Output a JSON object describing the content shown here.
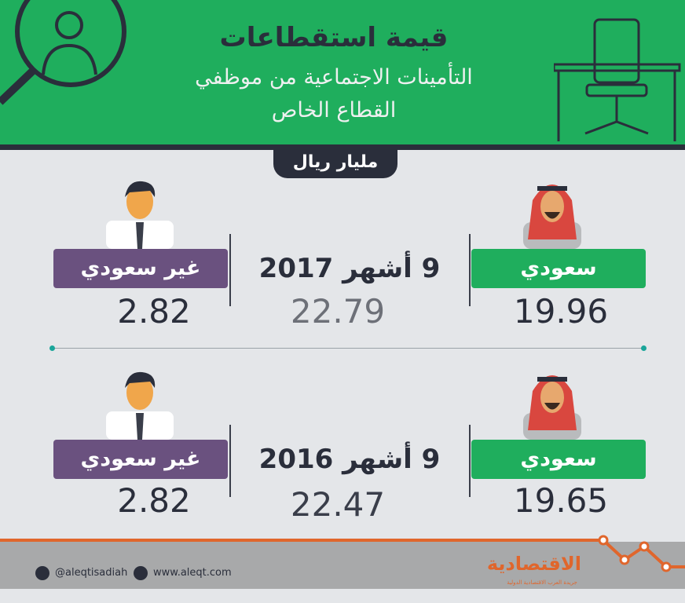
{
  "header": {
    "title_line1": "قيمة استقطاعات",
    "title_line2": "التأمينات الاجتماعية من موظفي",
    "title_line3": "القطاع الخاص"
  },
  "unit_badge": "مليار ريال",
  "rows": [
    {
      "period": "9 أشهر 2017",
      "saudi_label": "سعودي",
      "saudi_value": "19.96",
      "total_value": "22.79",
      "non_saudi_label": "غير سعودي",
      "non_saudi_value": "2.82"
    },
    {
      "period": "9 أشهر 2016",
      "saudi_label": "سعودي",
      "saudi_value": "19.65",
      "total_value": "22.47",
      "non_saudi_label": "غير سعودي",
      "non_saudi_value": "2.82"
    }
  ],
  "footer": {
    "twitter": "@aleqtisadiah",
    "website": "www.aleqt.com",
    "logo": "الاقتصادية",
    "logo_sub": "جريدة العرب الاقتصادية الدولية"
  },
  "colors": {
    "green": "#1fae5d",
    "purple": "#6a517f",
    "dark": "#2a2e3b",
    "orange": "#e0662c"
  }
}
